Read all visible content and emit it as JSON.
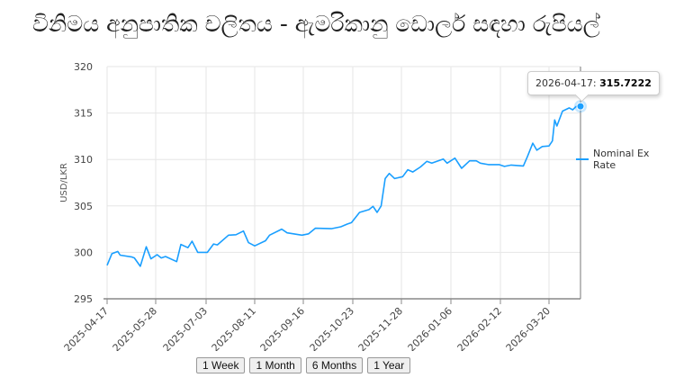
{
  "title": "විනිමය අනුපාතික චලිතය - ඇමරිකානු ඩොලර් සඳහා රුපියල්",
  "buttons": [
    "1 Week",
    "1 Month",
    "6 Months",
    "1 Year"
  ],
  "tooltip": {
    "date": "2026-04-17:",
    "value": "315.7222"
  },
  "colors": {
    "line": "#1a9fff",
    "grid": "#e6e6e6",
    "axis": "#888888"
  },
  "chart_data": {
    "type": "line",
    "title": "",
    "xlabel": "",
    "ylabel": "USD/LKR",
    "ylim": [
      295,
      320
    ],
    "yticks": [
      295,
      300,
      305,
      310,
      315,
      320
    ],
    "xticks": [
      "2025-04-17",
      "2025-05-28",
      "2025-07-03",
      "2025-08-11",
      "2025-09-16",
      "2025-10-23",
      "2025-11-28",
      "2026-01-06",
      "2026-02-12",
      "2026-03-20"
    ],
    "x_end": "2026-04-17",
    "grid": true,
    "legend": "right",
    "series": [
      {
        "name": "Nominal Ex Rate",
        "points": [
          [
            "2025-04-17",
            298.6
          ],
          [
            "2025-04-21",
            299.85
          ],
          [
            "2025-04-26",
            300.1
          ],
          [
            "2025-04-28",
            299.7
          ],
          [
            "2025-05-08",
            299.5
          ],
          [
            "2025-05-10",
            299.4
          ],
          [
            "2025-05-15",
            298.5
          ],
          [
            "2025-05-20",
            300.6
          ],
          [
            "2025-05-24",
            299.3
          ],
          [
            "2025-05-29",
            299.75
          ],
          [
            "2025-06-01",
            299.4
          ],
          [
            "2025-06-04",
            299.55
          ],
          [
            "2025-06-12",
            299.0
          ],
          [
            "2025-06-15",
            300.85
          ],
          [
            "2025-06-20",
            300.5
          ],
          [
            "2025-06-23",
            301.2
          ],
          [
            "2025-06-27",
            300.0
          ],
          [
            "2025-07-04",
            300.0
          ],
          [
            "2025-07-09",
            300.9
          ],
          [
            "2025-07-12",
            300.8
          ],
          [
            "2025-07-21",
            301.85
          ],
          [
            "2025-07-27",
            301.9
          ],
          [
            "2025-08-02",
            302.3
          ],
          [
            "2025-08-06",
            301.05
          ],
          [
            "2025-08-11",
            300.7
          ],
          [
            "2025-08-19",
            301.25
          ],
          [
            "2025-08-22",
            301.85
          ],
          [
            "2025-08-31",
            302.5
          ],
          [
            "2025-09-04",
            302.1
          ],
          [
            "2025-09-15",
            301.85
          ],
          [
            "2025-09-20",
            302.0
          ],
          [
            "2025-09-25",
            302.6
          ],
          [
            "2025-10-07",
            302.55
          ],
          [
            "2025-10-14",
            302.75
          ],
          [
            "2025-10-19",
            303.05
          ],
          [
            "2025-10-22",
            303.2
          ],
          [
            "2025-10-28",
            304.3
          ],
          [
            "2025-11-04",
            304.6
          ],
          [
            "2025-11-07",
            304.95
          ],
          [
            "2025-11-10",
            304.3
          ],
          [
            "2025-11-13",
            305.0
          ],
          [
            "2025-11-16",
            307.95
          ],
          [
            "2025-11-19",
            308.5
          ],
          [
            "2025-11-23",
            307.95
          ],
          [
            "2025-11-29",
            308.15
          ],
          [
            "2025-12-03",
            308.9
          ],
          [
            "2025-12-07",
            308.65
          ],
          [
            "2025-12-13",
            309.2
          ],
          [
            "2025-12-18",
            309.8
          ],
          [
            "2025-12-22",
            309.6
          ],
          [
            "2025-12-31",
            310.05
          ],
          [
            "2026-01-03",
            309.6
          ],
          [
            "2026-01-09",
            310.15
          ],
          [
            "2026-01-14",
            309.05
          ],
          [
            "2026-01-20",
            309.85
          ],
          [
            "2026-01-25",
            309.85
          ],
          [
            "2026-01-28",
            309.6
          ],
          [
            "2026-02-03",
            309.45
          ],
          [
            "2026-02-11",
            309.45
          ],
          [
            "2026-02-15",
            309.25
          ],
          [
            "2026-02-20",
            309.4
          ],
          [
            "2026-03-01",
            309.3
          ],
          [
            "2026-03-04",
            310.3
          ],
          [
            "2026-03-08",
            311.75
          ],
          [
            "2026-03-11",
            311.0
          ],
          [
            "2026-03-15",
            311.4
          ],
          [
            "2026-03-20",
            311.45
          ],
          [
            "2026-03-23",
            312.0
          ],
          [
            "2026-03-25",
            314.25
          ],
          [
            "2026-03-27",
            313.6
          ],
          [
            "2026-04-01",
            315.2
          ],
          [
            "2026-04-07",
            315.55
          ],
          [
            "2026-04-10",
            315.35
          ],
          [
            "2026-04-13",
            315.7
          ],
          [
            "2026-04-17",
            315.7222
          ]
        ]
      }
    ]
  }
}
